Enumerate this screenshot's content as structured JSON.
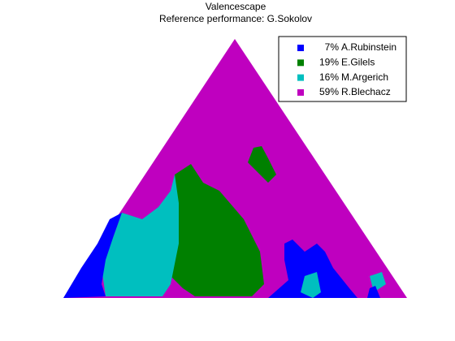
{
  "chart_data": {
    "type": "valencescape",
    "title": "Valencescape",
    "subtitle": "Reference performance: G.Sokolov",
    "series": [
      {
        "name": "A.Rubinstein",
        "color": "#0000ff",
        "value": 7,
        "value_label": "7%"
      },
      {
        "name": "E.Gilels",
        "color": "#008000",
        "value": 19,
        "value_label": "19%"
      },
      {
        "name": "M.Argerich",
        "color": "#00bfbf",
        "value": 16,
        "value_label": "16%"
      },
      {
        "name": "R.Blechacz",
        "color": "#bf00bf",
        "value": 59,
        "value_label": "59%"
      }
    ]
  }
}
